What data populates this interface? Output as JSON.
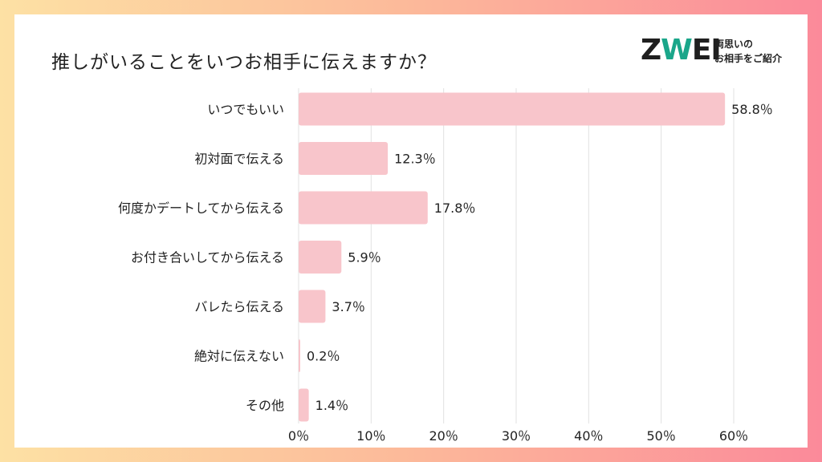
{
  "logo": {
    "wordmark_left": "Z",
    "wordmark_heart": "W",
    "wordmark_right": "EI",
    "tagline_line1": "両思いの",
    "tagline_line2": "お相手をご紹介",
    "heart_color": "#1aa68a"
  },
  "chart_data": {
    "type": "bar",
    "orientation": "horizontal",
    "title": "推しがいることをいつお相手に伝えますか？",
    "categories": [
      "いつでもいい",
      "初対面で伝える",
      "何度かデートしてから伝える",
      "お付き合いしてから伝える",
      "バレたら伝える",
      "絶対に伝えない",
      "その他"
    ],
    "values": [
      58.8,
      12.3,
      17.8,
      5.9,
      3.7,
      0.2,
      1.4
    ],
    "value_labels": [
      "58.8％",
      "12.3％",
      "17.8％",
      "5.9％",
      "3.7％",
      "0.2％",
      "1.4％"
    ],
    "xlim": [
      0,
      60
    ],
    "xticks": [
      0,
      10,
      20,
      30,
      40,
      50,
      60
    ],
    "xtick_labels": [
      "0％",
      "10％",
      "20％",
      "30％",
      "40％",
      "50％",
      "60％"
    ],
    "grid": true,
    "bar_color": "#f8c5cb",
    "grid_color": "#e2e2e2"
  }
}
